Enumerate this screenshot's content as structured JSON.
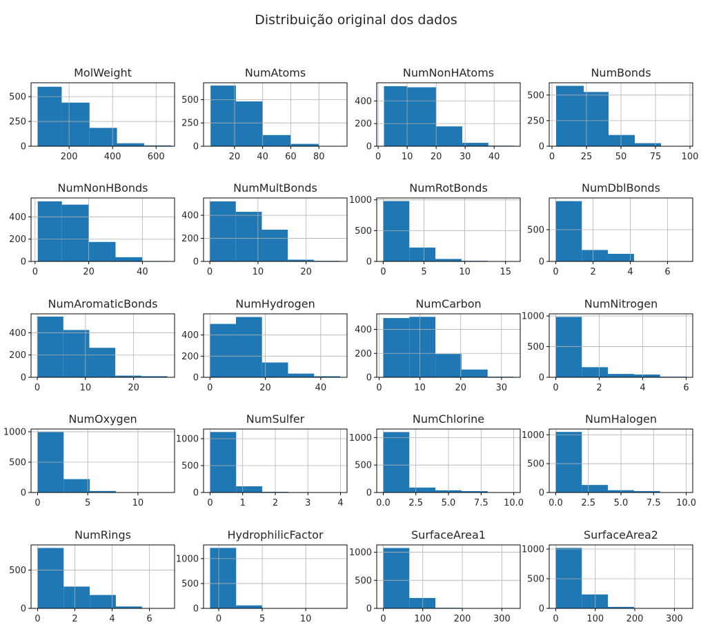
{
  "figure": {
    "suptitle": "Distribuição original dos dados",
    "bar_color": "#1f77b4",
    "grid_color": "#b0b0b0"
  },
  "chart_data": [
    {
      "type": "bar",
      "title": "MolWeight",
      "bins": [
        [
          55,
          166,
          600
        ],
        [
          166,
          294,
          440
        ],
        [
          294,
          420,
          185
        ],
        [
          420,
          545,
          30
        ],
        [
          545,
          670,
          8
        ]
      ],
      "xlim": [
        25,
        685
      ],
      "ylim": [
        0,
        640
      ],
      "xticks": [
        200,
        400,
        600
      ],
      "yticks": [
        0,
        250,
        500
      ],
      "grid": true
    },
    {
      "type": "bar",
      "title": "NumAtoms",
      "bins": [
        [
          3,
          21,
          650
        ],
        [
          21,
          40,
          480
        ],
        [
          40,
          60,
          120
        ],
        [
          60,
          80,
          25
        ],
        [
          80,
          95,
          3
        ]
      ],
      "xlim": [
        -2,
        100
      ],
      "ylim": [
        0,
        680
      ],
      "xticks": [
        20,
        40,
        60,
        80
      ],
      "yticks": [
        0,
        250,
        500
      ],
      "grid": true
    },
    {
      "type": "bar",
      "title": "NumNonHAtoms",
      "bins": [
        [
          2,
          10,
          530
        ],
        [
          10,
          20,
          520
        ],
        [
          20,
          29,
          175
        ],
        [
          29,
          38,
          30
        ],
        [
          38,
          47,
          5
        ]
      ],
      "xlim": [
        -0.5,
        49
      ],
      "ylim": [
        0,
        560
      ],
      "xticks": [
        0,
        10,
        20,
        30,
        40
      ],
      "yticks": [
        0,
        200,
        400
      ],
      "grid": true
    },
    {
      "type": "bar",
      "title": "NumBonds",
      "bins": [
        [
          3,
          23,
          590
        ],
        [
          23,
          41,
          530
        ],
        [
          41,
          60,
          110
        ],
        [
          60,
          79,
          30
        ],
        [
          79,
          97,
          3
        ]
      ],
      "xlim": [
        -2,
        102
      ],
      "ylim": [
        0,
        620
      ],
      "xticks": [
        0,
        25,
        50,
        75,
        100
      ],
      "yticks": [
        0,
        250,
        500
      ],
      "grid": true
    },
    {
      "type": "bar",
      "title": "NumNonHBonds",
      "bins": [
        [
          1,
          10,
          540
        ],
        [
          10,
          20,
          510
        ],
        [
          20,
          30,
          175
        ],
        [
          30,
          40,
          38
        ],
        [
          40,
          50,
          4
        ]
      ],
      "xlim": [
        -1.5,
        52
      ],
      "ylim": [
        0,
        570
      ],
      "xticks": [
        0,
        20,
        40
      ],
      "yticks": [
        0,
        200,
        400
      ],
      "grid": true
    },
    {
      "type": "bar",
      "title": "NumMultBonds",
      "bins": [
        [
          0,
          5.4,
          520
        ],
        [
          5.4,
          10.8,
          430
        ],
        [
          10.8,
          16.2,
          275
        ],
        [
          16.2,
          21.6,
          15
        ],
        [
          21.6,
          27,
          5
        ]
      ],
      "xlim": [
        -1.3,
        28.5
      ],
      "ylim": [
        0,
        550
      ],
      "xticks": [
        0,
        10,
        20
      ],
      "yticks": [
        0,
        200,
        400
      ],
      "grid": true
    },
    {
      "type": "bar",
      "title": "NumRotBonds",
      "bins": [
        [
          0,
          3.2,
          980
        ],
        [
          3.2,
          6.4,
          225
        ],
        [
          6.4,
          9.6,
          40
        ],
        [
          9.6,
          12.8,
          10
        ],
        [
          12.8,
          16,
          3
        ]
      ],
      "xlim": [
        -0.8,
        16.8
      ],
      "ylim": [
        0,
        1030
      ],
      "xticks": [
        0,
        5,
        10,
        15
      ],
      "yticks": [
        0,
        500,
        1000
      ],
      "grid": true
    },
    {
      "type": "bar",
      "title": "NumDblBonds",
      "bins": [
        [
          0,
          1.4,
          950
        ],
        [
          1.4,
          2.8,
          180
        ],
        [
          2.8,
          4.2,
          120
        ],
        [
          4.2,
          5.6,
          5
        ],
        [
          5.6,
          7,
          2
        ]
      ],
      "xlim": [
        -0.35,
        7.35
      ],
      "ylim": [
        0,
        1000
      ],
      "xticks": [
        0,
        2,
        4,
        6
      ],
      "yticks": [
        0,
        500
      ],
      "grid": true
    },
    {
      "type": "bar",
      "title": "NumAromaticBonds",
      "bins": [
        [
          0,
          5.4,
          545
        ],
        [
          5.4,
          10.8,
          425
        ],
        [
          10.8,
          16.2,
          265
        ],
        [
          16.2,
          21.6,
          15
        ],
        [
          21.6,
          27,
          10
        ]
      ],
      "xlim": [
        -1.3,
        28.5
      ],
      "ylim": [
        0,
        570
      ],
      "xticks": [
        0,
        10,
        20
      ],
      "yticks": [
        0,
        200,
        400
      ],
      "grid": true
    },
    {
      "type": "bar",
      "title": "NumHydrogen",
      "bins": [
        [
          0,
          9.4,
          505
        ],
        [
          9.4,
          18.8,
          570
        ],
        [
          18.8,
          28.2,
          140
        ],
        [
          28.2,
          37.6,
          35
        ],
        [
          37.6,
          47,
          10
        ]
      ],
      "xlim": [
        -2.3,
        49.5
      ],
      "ylim": [
        0,
        600
      ],
      "xticks": [
        0,
        20,
        40
      ],
      "yticks": [
        0,
        200,
        400
      ],
      "grid": true
    },
    {
      "type": "bar",
      "title": "NumCarbon",
      "bins": [
        [
          1,
          7.4,
          495
        ],
        [
          7.4,
          13.8,
          505
        ],
        [
          13.8,
          20.2,
          195
        ],
        [
          20.2,
          26.6,
          65
        ],
        [
          26.6,
          33,
          5
        ]
      ],
      "xlim": [
        -0.6,
        34.6
      ],
      "ylim": [
        0,
        530
      ],
      "xticks": [
        0,
        10,
        20,
        30
      ],
      "yticks": [
        0,
        200,
        400
      ],
      "grid": true
    },
    {
      "type": "bar",
      "title": "NumNitrogen",
      "bins": [
        [
          0,
          1.2,
          985
        ],
        [
          1.2,
          2.4,
          165
        ],
        [
          2.4,
          3.6,
          55
        ],
        [
          3.6,
          4.8,
          45
        ],
        [
          4.8,
          6,
          10
        ]
      ],
      "xlim": [
        -0.3,
        6.3
      ],
      "ylim": [
        0,
        1035
      ],
      "xticks": [
        0,
        2,
        4,
        6
      ],
      "yticks": [
        0,
        500,
        1000
      ],
      "grid": true
    },
    {
      "type": "bar",
      "title": "NumOxygen",
      "bins": [
        [
          0,
          2.6,
          995
        ],
        [
          2.6,
          5.2,
          220
        ],
        [
          5.2,
          7.8,
          25
        ],
        [
          7.8,
          10.4,
          5
        ],
        [
          10.4,
          13,
          2
        ]
      ],
      "xlim": [
        -0.65,
        13.65
      ],
      "ylim": [
        0,
        1045
      ],
      "xticks": [
        0,
        5,
        10
      ],
      "yticks": [
        0,
        500,
        1000
      ],
      "grid": true
    },
    {
      "type": "bar",
      "title": "NumSulfer",
      "bins": [
        [
          0,
          0.8,
          1125
        ],
        [
          0.8,
          1.6,
          115
        ],
        [
          1.6,
          2.4,
          12
        ],
        [
          2.4,
          3.2,
          5
        ],
        [
          3.2,
          4,
          2
        ]
      ],
      "xlim": [
        -0.2,
        4.2
      ],
      "ylim": [
        0,
        1180
      ],
      "xticks": [
        0,
        1,
        2,
        3,
        4
      ],
      "yticks": [
        0,
        500,
        1000
      ],
      "grid": true
    },
    {
      "type": "bar",
      "title": "NumChlorine",
      "bins": [
        [
          0,
          2,
          1100
        ],
        [
          2,
          4,
          90
        ],
        [
          4,
          6,
          40
        ],
        [
          6,
          8,
          25
        ],
        [
          8,
          10,
          2
        ]
      ],
      "xlim": [
        -0.5,
        10.5
      ],
      "ylim": [
        0,
        1155
      ],
      "xticks": [
        "0.0",
        "2.5",
        "5.0",
        "7.5",
        "10.0"
      ],
      "yticks": [
        0,
        500,
        1000
      ],
      "grid": true
    },
    {
      "type": "bar",
      "title": "NumHalogen",
      "bins": [
        [
          0,
          2,
          1050
        ],
        [
          2,
          4,
          130
        ],
        [
          4,
          6,
          40
        ],
        [
          6,
          8,
          25
        ],
        [
          8,
          10,
          5
        ]
      ],
      "xlim": [
        -0.5,
        10.5
      ],
      "ylim": [
        0,
        1100
      ],
      "xticks": [
        "0.0",
        "2.5",
        "5.0",
        "7.5",
        "10.0"
      ],
      "yticks": [
        0,
        500,
        1000
      ],
      "grid": true
    },
    {
      "type": "bar",
      "title": "NumRings",
      "bins": [
        [
          0,
          1.4,
          790
        ],
        [
          1.4,
          2.8,
          285
        ],
        [
          2.8,
          4.2,
          175
        ],
        [
          4.2,
          5.6,
          25
        ],
        [
          5.6,
          7,
          3
        ]
      ],
      "xlim": [
        -0.35,
        7.35
      ],
      "ylim": [
        0,
        830
      ],
      "xticks": [
        0,
        2,
        4,
        6
      ],
      "yticks": [
        0,
        500
      ],
      "grid": true
    },
    {
      "type": "bar",
      "title": "HydrophilicFactor",
      "bins": [
        [
          -1,
          2,
          1215
        ],
        [
          2,
          5,
          60
        ],
        [
          5,
          8,
          5
        ],
        [
          8,
          11,
          2
        ],
        [
          11,
          14,
          1
        ]
      ],
      "xlim": [
        -1.75,
        14.75
      ],
      "ylim": [
        0,
        1275
      ],
      "xticks": [
        0,
        5,
        10
      ],
      "yticks": [
        0,
        500,
        1000
      ],
      "grid": true
    },
    {
      "type": "bar",
      "title": "SurfaceArea1",
      "bins": [
        [
          0,
          66,
          1075
        ],
        [
          66,
          132,
          185
        ],
        [
          132,
          198,
          10
        ],
        [
          198,
          264,
          2
        ],
        [
          264,
          330,
          1
        ]
      ],
      "xlim": [
        -16.5,
        346.5
      ],
      "ylim": [
        0,
        1130
      ],
      "xticks": [
        0,
        100,
        200,
        300
      ],
      "yticks": [
        0,
        500,
        1000
      ],
      "grid": true
    },
    {
      "type": "bar",
      "title": "SurfaceArea2",
      "bins": [
        [
          0,
          66,
          1020
        ],
        [
          66,
          132,
          235
        ],
        [
          132,
          198,
          25
        ],
        [
          198,
          264,
          2
        ],
        [
          264,
          330,
          1
        ]
      ],
      "xlim": [
        -16.5,
        346.5
      ],
      "ylim": [
        0,
        1070
      ],
      "xticks": [
        0,
        100,
        200,
        300
      ],
      "yticks": [
        0,
        500,
        1000
      ],
      "grid": true
    }
  ]
}
